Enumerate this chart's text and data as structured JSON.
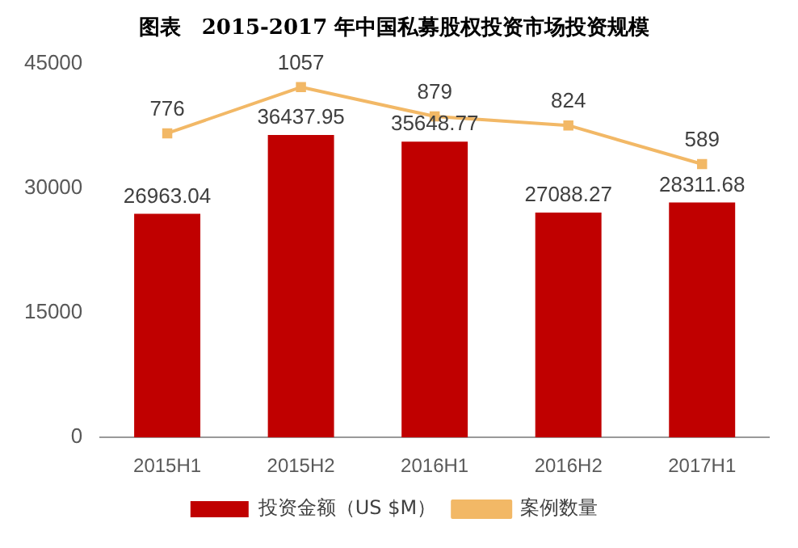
{
  "chart_data": {
    "type": "bar",
    "title": "图表　2015-2017 年中国私募股权投资市场投资规模",
    "categories": [
      "2015H1",
      "2015H2",
      "2016H1",
      "2016H2",
      "2017H1"
    ],
    "series": [
      {
        "name": "投资金额（US $M）",
        "color": "#c00000",
        "values": [
          26963.04,
          36437.95,
          35648.77,
          27088.27,
          28311.68
        ]
      },
      {
        "name": "案例数量",
        "type": "line",
        "axis": "y2",
        "color": "#f2b866",
        "marker": "square",
        "values": [
          776,
          1057,
          879,
          824,
          589
        ]
      }
    ],
    "ylim": [
      0,
      45000
    ],
    "yticks": [
      0,
      15000,
      30000,
      45000
    ],
    "data_labels": true,
    "legend": "bottom",
    "grid": false
  }
}
